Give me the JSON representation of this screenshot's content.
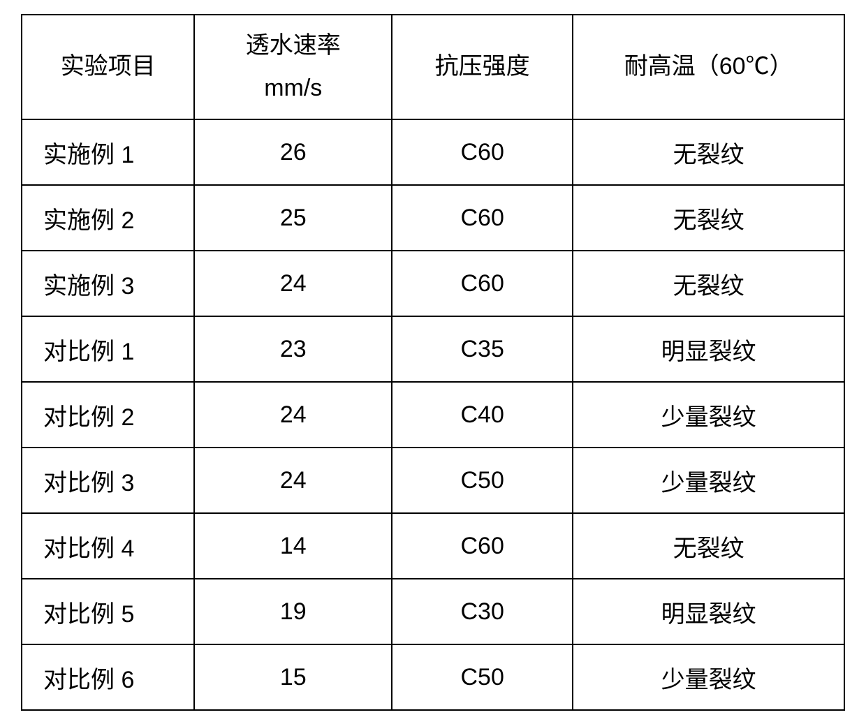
{
  "table": {
    "type": "table",
    "columns": [
      {
        "label_line1": "实验项目",
        "label_line2": "",
        "width_pct": 21,
        "align": "left"
      },
      {
        "label_line1": "透水速率",
        "label_line2": "mm/s",
        "width_pct": 24,
        "align": "center"
      },
      {
        "label_line1": "抗压强度",
        "label_line2": "",
        "width_pct": 22,
        "align": "center"
      },
      {
        "label_line1": "耐高温（60℃）",
        "label_line2": "",
        "width_pct": 33,
        "align": "center"
      }
    ],
    "rows": [
      {
        "label": "实施例 1",
        "rate": "26",
        "strength": "C60",
        "heat": "无裂纹"
      },
      {
        "label": "实施例 2",
        "rate": "25",
        "strength": "C60",
        "heat": "无裂纹"
      },
      {
        "label": "实施例 3",
        "rate": "24",
        "strength": "C60",
        "heat": "无裂纹"
      },
      {
        "label": "对比例 1",
        "rate": "23",
        "strength": "C35",
        "heat": "明显裂纹"
      },
      {
        "label": "对比例 2",
        "rate": "24",
        "strength": "C40",
        "heat": "少量裂纹"
      },
      {
        "label": "对比例 3",
        "rate": "24",
        "strength": "C50",
        "heat": "少量裂纹"
      },
      {
        "label": "对比例 4",
        "rate": "14",
        "strength": "C60",
        "heat": "无裂纹"
      },
      {
        "label": "对比例 5",
        "rate": "19",
        "strength": "C30",
        "heat": "明显裂纹"
      },
      {
        "label": "对比例 6",
        "rate": "15",
        "strength": "C50",
        "heat": "少量裂纹"
      }
    ],
    "styling": {
      "border_color": "#000000",
      "border_width": 2,
      "background_color": "#ffffff",
      "text_color": "#000000",
      "font_size": 34,
      "header_row_height": 150,
      "body_row_height": 94,
      "row_label_padding_left": 30
    }
  }
}
